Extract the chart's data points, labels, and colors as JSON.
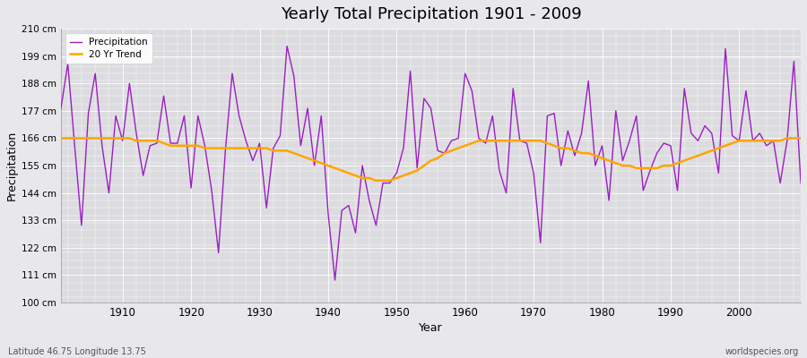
{
  "title": "Yearly Total Precipitation 1901 - 2009",
  "xlabel": "Year",
  "ylabel": "Precipitation",
  "xlim": [
    1901,
    2009
  ],
  "ylim": [
    100,
    210
  ],
  "yticks": [
    100,
    111,
    122,
    133,
    144,
    155,
    166,
    177,
    188,
    199,
    210
  ],
  "ytick_labels": [
    "100 cm",
    "111 cm",
    "122 cm",
    "133 cm",
    "144 cm",
    "155 cm",
    "166 cm",
    "177 cm",
    "188 cm",
    "199 cm",
    "210 cm"
  ],
  "bg_color": "#e8e8eb",
  "plot_bg_color": "#dcdce0",
  "precip_color": "#9B1FC1",
  "trend_color": "#FFA500",
  "precip_linewidth": 1.0,
  "trend_linewidth": 1.8,
  "subtitle_left": "Latitude 46.75 Longitude 13.75",
  "subtitle_right": "worldspecies.org",
  "xticks": [
    1910,
    1920,
    1930,
    1940,
    1950,
    1960,
    1970,
    1980,
    1990,
    2000
  ],
  "years": [
    1901,
    1902,
    1903,
    1904,
    1905,
    1906,
    1907,
    1908,
    1909,
    1910,
    1911,
    1912,
    1913,
    1914,
    1915,
    1916,
    1917,
    1918,
    1919,
    1920,
    1921,
    1922,
    1923,
    1924,
    1925,
    1926,
    1927,
    1928,
    1929,
    1930,
    1931,
    1932,
    1933,
    1934,
    1935,
    1936,
    1937,
    1938,
    1939,
    1940,
    1941,
    1942,
    1943,
    1944,
    1945,
    1946,
    1947,
    1948,
    1949,
    1950,
    1951,
    1952,
    1953,
    1954,
    1955,
    1956,
    1957,
    1958,
    1959,
    1960,
    1961,
    1962,
    1963,
    1964,
    1965,
    1966,
    1967,
    1968,
    1969,
    1970,
    1971,
    1972,
    1973,
    1974,
    1975,
    1976,
    1977,
    1978,
    1979,
    1980,
    1981,
    1982,
    1983,
    1984,
    1985,
    1986,
    1987,
    1988,
    1989,
    1990,
    1991,
    1992,
    1993,
    1994,
    1995,
    1996,
    1997,
    1998,
    1999,
    2000,
    2001,
    2002,
    2003,
    2004,
    2005,
    2006,
    2007,
    2008,
    2009
  ],
  "precip": [
    178,
    196,
    163,
    131,
    176,
    192,
    163,
    144,
    175,
    165,
    188,
    168,
    151,
    163,
    164,
    183,
    164,
    164,
    175,
    146,
    175,
    163,
    145,
    120,
    161,
    192,
    175,
    165,
    157,
    164,
    138,
    162,
    167,
    203,
    191,
    163,
    178,
    155,
    175,
    136,
    109,
    137,
    139,
    128,
    155,
    141,
    131,
    148,
    148,
    152,
    162,
    193,
    154,
    182,
    178,
    161,
    160,
    165,
    166,
    192,
    185,
    166,
    164,
    175,
    153,
    144,
    186,
    165,
    164,
    152,
    124,
    175,
    176,
    155,
    169,
    159,
    168,
    189,
    155,
    163,
    141,
    177,
    157,
    165,
    175,
    145,
    153,
    160,
    164,
    163,
    145,
    186,
    168,
    165,
    171,
    168,
    152,
    202,
    167,
    165,
    185,
    165,
    168,
    163,
    165,
    148,
    165,
    197,
    148
  ],
  "trend": [
    166,
    166,
    166,
    166,
    166,
    166,
    166,
    166,
    166,
    166,
    166,
    165,
    165,
    165,
    165,
    164,
    163,
    163,
    163,
    163,
    163,
    162,
    162,
    162,
    162,
    162,
    162,
    162,
    162,
    162,
    162,
    161,
    161,
    161,
    160,
    159,
    158,
    157,
    156,
    155,
    154,
    153,
    152,
    151,
    150,
    150,
    149,
    149,
    149,
    150,
    151,
    152,
    153,
    155,
    157,
    158,
    160,
    161,
    162,
    163,
    164,
    165,
    165,
    165,
    165,
    165,
    165,
    165,
    165,
    165,
    165,
    164,
    163,
    162,
    162,
    161,
    160,
    160,
    159,
    158,
    157,
    156,
    155,
    155,
    154,
    154,
    154,
    154,
    155,
    155,
    156,
    157,
    158,
    159,
    160,
    161,
    162,
    163,
    164,
    165,
    165,
    165,
    165,
    165,
    165,
    165,
    166,
    166,
    166
  ]
}
